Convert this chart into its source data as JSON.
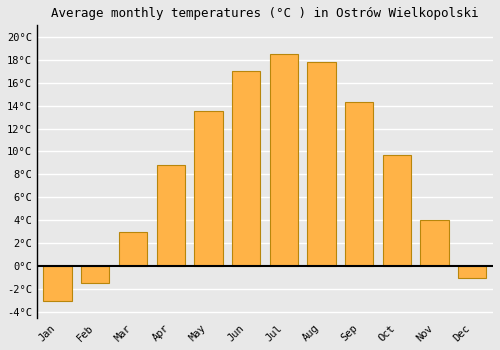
{
  "months": [
    "Jan",
    "Feb",
    "Mar",
    "Apr",
    "May",
    "Jun",
    "Jul",
    "Aug",
    "Sep",
    "Oct",
    "Nov",
    "Dec"
  ],
  "temperatures": [
    -3.0,
    -1.5,
    3.0,
    8.8,
    13.5,
    17.0,
    18.5,
    17.8,
    14.3,
    9.7,
    4.0,
    -1.0
  ],
  "bar_color": "#FFB347",
  "bar_edge_color": "#B8860B",
  "title": "Average monthly temperatures (°C ) in Ostrów Wielkopolski",
  "title_fontsize": 9,
  "ylim": [
    -4.5,
    21.0
  ],
  "yticks": [
    -4,
    -2,
    0,
    2,
    4,
    6,
    8,
    10,
    12,
    14,
    16,
    18,
    20
  ],
  "background_color": "#e8e8e8",
  "grid_color": "#ffffff",
  "zero_line_color": "#000000",
  "tick_label_fontsize": 7.5,
  "font_family": "monospace",
  "bar_width": 0.75,
  "left_spine_color": "#000000"
}
